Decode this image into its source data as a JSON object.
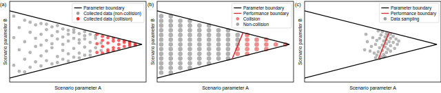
{
  "chart_data": [
    {
      "type": "scatter",
      "title": "(a)",
      "x_label": "Scenario parameter A",
      "y_label": "Scenario parameter B",
      "xlim": [
        0,
        10
      ],
      "ylim": [
        -5.6,
        6.4
      ],
      "tick_labels": false,
      "grid": false,
      "legend": "upper right",
      "series": [
        {
          "name": "Parameter boundary",
          "type": "line",
          "color": "#000000",
          "line_style": "solid",
          "x": [
            0,
            9.7,
            0
          ],
          "values": [
            5,
            0,
            -5
          ]
        },
        {
          "name": "Collected data (non-collision)",
          "type": "scatter",
          "color": "#9e9e9e",
          "marker": "o",
          "x": [
            0.3,
            0.3,
            0.3,
            0.7,
            0.7,
            0.7,
            1.1,
            1.1,
            1.1,
            1.1,
            1.5,
            1.5,
            1.5,
            1.5,
            1.9,
            1.9,
            1.9,
            1.9,
            2.3,
            2.3,
            2.3,
            2.3,
            2.3,
            2.7,
            2.7,
            2.7,
            2.7,
            2.7,
            3.1,
            3.1,
            3.1,
            3.1,
            3.1,
            3.5,
            3.5,
            3.5,
            3.5,
            3.5,
            3.9,
            3.9,
            3.9,
            3.9,
            3.9,
            4.3,
            4.3,
            4.3,
            4.3,
            4.3,
            4.7,
            4.7,
            4.7,
            4.7,
            4.7,
            5.1,
            5.1,
            5.1,
            5.1,
            5.1,
            5.5,
            5.5,
            5.5,
            5.5,
            5.5,
            5.9,
            5.9,
            5.9,
            5.9,
            6.3,
            6.3,
            6.3,
            6.7,
            6.7
          ],
          "values": [
            4.2,
            -3.1,
            1.0,
            -4.0,
            2.5,
            -0.8,
            3.6,
            -2.2,
            0.4,
            -4.1,
            1.8,
            -1.2,
            3.3,
            -3.4,
            -0.3,
            2.9,
            -2.6,
            0.9,
            3.1,
            -1.7,
            1.5,
            -3.2,
            -0.1,
            2.2,
            -2.4,
            0.6,
            -1.0,
            3.0,
            -2.9,
            1.3,
            -0.5,
            2.6,
            0.1,
            1.9,
            -1.8,
            2.8,
            -2.7,
            0.8,
            -0.9,
            2.3,
            -2.2,
            1.1,
            0.0,
            2.1,
            -1.4,
            0.5,
            -2.5,
            1.5,
            -0.6,
            1.8,
            -1.9,
            0.9,
            2.2,
            0.2,
            -1.3,
            1.6,
            -2.0,
            0.7,
            -0.4,
            1.3,
            -1.6,
            0.8,
            1.9,
            0.3,
            -1.0,
            1.5,
            -1.6,
            0.9,
            -0.5,
            1.3,
            -0.9,
            0.2
          ]
        },
        {
          "name": "Collected data (collision)",
          "type": "scatter",
          "color": "#ff2a2a",
          "marker": "o",
          "x": [
            6.4,
            6.4,
            6.4,
            6.8,
            6.8,
            6.8,
            6.8,
            7.2,
            7.2,
            7.2,
            7.2,
            7.6,
            7.6,
            7.6,
            7.6,
            8.0,
            8.0,
            8.0,
            8.4,
            8.4,
            8.4,
            8.8,
            8.8,
            8.8,
            9.2,
            9.2
          ],
          "values": [
            0.1,
            -1.2,
            1.5,
            0.6,
            -0.3,
            1.2,
            -1.3,
            0.2,
            -0.8,
            1.0,
            -1.1,
            0.5,
            -0.5,
            0.9,
            -0.9,
            0.0,
            0.6,
            -0.6,
            0.3,
            -0.3,
            0.55,
            0.1,
            -0.2,
            0.35,
            0.05,
            -0.1
          ]
        }
      ]
    },
    {
      "type": "scatter",
      "title": "(b)",
      "x_label": "Scenario parameter A",
      "y_label": "Scenario parameter B",
      "xlim": [
        0,
        10
      ],
      "ylim": [
        -5.6,
        6.4
      ],
      "tick_labels": false,
      "grid": false,
      "legend": "upper right",
      "series": [
        {
          "name": "Parameter boundary",
          "type": "line",
          "color": "#000000",
          "line_style": "solid",
          "x": [
            0,
            9.7,
            0
          ],
          "values": [
            5,
            0,
            -5
          ]
        },
        {
          "name": "Performance boundary",
          "type": "line",
          "color": "#d62728",
          "line_style": "solid",
          "x": [
            6.3,
            5.5
          ],
          "values": [
            1.75,
            -2.16
          ]
        },
        {
          "name": "Collision",
          "type": "scatter",
          "color": "#f07f7f",
          "marker": "o",
          "x": [
            5.9,
            5.9,
            6.6,
            6.6,
            6.6,
            6.6,
            6.6,
            7.3,
            7.3,
            7.3,
            8.0,
            8.0,
            8.0,
            8.7,
            9.4
          ],
          "values": [
            -1.4,
            -0.7,
            -1.4,
            -0.7,
            0,
            0.7,
            1.4,
            -0.7,
            0,
            0.7,
            -0.7,
            0,
            0.7,
            0,
            0
          ]
        },
        {
          "name": "Non-collision",
          "type": "scatter",
          "color": "#a8a8a8",
          "marker": "o",
          "x": [
            0.3,
            0.3,
            0.3,
            0.3,
            0.3,
            0.3,
            0.3,
            0.3,
            0.3,
            0.3,
            0.3,
            0.3,
            0.3,
            1.0,
            1.0,
            1.0,
            1.0,
            1.0,
            1.0,
            1.0,
            1.0,
            1.0,
            1.0,
            1.0,
            1.0,
            1.0,
            1.7,
            1.7,
            1.7,
            1.7,
            1.7,
            1.7,
            1.7,
            1.7,
            1.7,
            1.7,
            1.7,
            2.4,
            2.4,
            2.4,
            2.4,
            2.4,
            2.4,
            2.4,
            2.4,
            2.4,
            2.4,
            2.4,
            3.1,
            3.1,
            3.1,
            3.1,
            3.1,
            3.1,
            3.1,
            3.1,
            3.1,
            3.8,
            3.8,
            3.8,
            3.8,
            3.8,
            3.8,
            3.8,
            3.8,
            3.8,
            4.5,
            4.5,
            4.5,
            4.5,
            4.5,
            4.5,
            4.5,
            5.2,
            5.2,
            5.2,
            5.2,
            5.2,
            5.2,
            5.2,
            5.9,
            5.9,
            5.9
          ],
          "values": [
            -4.2,
            -3.5,
            -2.8,
            -2.1,
            -1.4,
            -0.7,
            0,
            0.7,
            1.4,
            2.1,
            2.8,
            3.5,
            4.2,
            -4.2,
            -3.5,
            -2.8,
            -2.1,
            -1.4,
            -0.7,
            0,
            0.7,
            1.4,
            2.1,
            2.8,
            3.5,
            4.2,
            -3.5,
            -2.8,
            -2.1,
            -1.4,
            -0.7,
            0,
            0.7,
            1.4,
            2.1,
            2.8,
            3.5,
            -3.5,
            -2.8,
            -2.1,
            -1.4,
            -0.7,
            0,
            0.7,
            1.4,
            2.1,
            2.8,
            3.5,
            -2.8,
            -2.1,
            -1.4,
            -0.7,
            0,
            0.7,
            1.4,
            2.1,
            2.8,
            -2.8,
            -2.1,
            -1.4,
            -0.7,
            0,
            0.7,
            1.4,
            2.1,
            2.8,
            -2.1,
            -1.4,
            -0.7,
            0,
            0.7,
            1.4,
            2.1,
            -2.1,
            -1.4,
            -0.7,
            0,
            0.7,
            1.4,
            2.1,
            0,
            0.7,
            1.4
          ]
        }
      ]
    },
    {
      "type": "scatter",
      "title": "(c)",
      "x_label": "Scenario parameter A",
      "y_label": "Scenario parameter B",
      "xlim": [
        0,
        10
      ],
      "ylim": [
        -5.6,
        6.4
      ],
      "tick_labels": false,
      "grid": false,
      "legend": "upper right",
      "series": [
        {
          "name": "Parameter boundary",
          "type": "line",
          "color": "#000000",
          "line_style": "solid",
          "x": [
            0,
            9.7,
            0
          ],
          "values": [
            5,
            0,
            -5
          ]
        },
        {
          "name": "Performance boundary",
          "type": "line",
          "color": "#d62728",
          "line_style": "solid",
          "x": [
            6.2,
            5.4
          ],
          "values": [
            1.8,
            -2.22
          ]
        },
        {
          "name": "Data sampling",
          "type": "scatter",
          "color": "#9e9e9e",
          "marker": "o",
          "x": [
            6.3,
            6.0,
            5.7,
            6.5,
            5.4,
            6.1,
            5.9,
            6.3,
            6.7,
            5.6,
            6.0,
            5.8,
            6.2,
            5.5,
            6.5,
            5.3,
            6.0,
            5.7,
            6.3,
            5.9,
            5.2,
            6.8,
            5.5,
            6.1,
            5.7,
            4.9,
            5.4,
            6.0,
            5.8,
            5.3,
            5.6,
            6.3,
            5.1,
            5.5,
            5.9,
            4.8,
            5.0,
            4.6,
            6.6,
            5.2,
            4.4,
            6.9,
            4.5,
            5.8
          ],
          "values": [
            1.5,
            1.6,
            1.9,
            1.2,
            2.0,
            1.3,
            1.1,
            0.9,
            0.8,
            1.4,
            0.7,
            0.5,
            0.4,
            0.9,
            0.3,
            0.6,
            0.1,
            -0.1,
            -0.2,
            -0.4,
            0.0,
            0.0,
            -0.5,
            -0.7,
            -0.9,
            -0.3,
            -1.1,
            -1.2,
            -1.5,
            -1.6,
            -1.8,
            -1.0,
            -1.3,
            -2.1,
            -1.8,
            -1.0,
            1.0,
            0.4,
            -0.6,
            -2.0,
            -0.8,
            0.5,
            1.5,
            -1.9
          ]
        }
      ]
    }
  ]
}
